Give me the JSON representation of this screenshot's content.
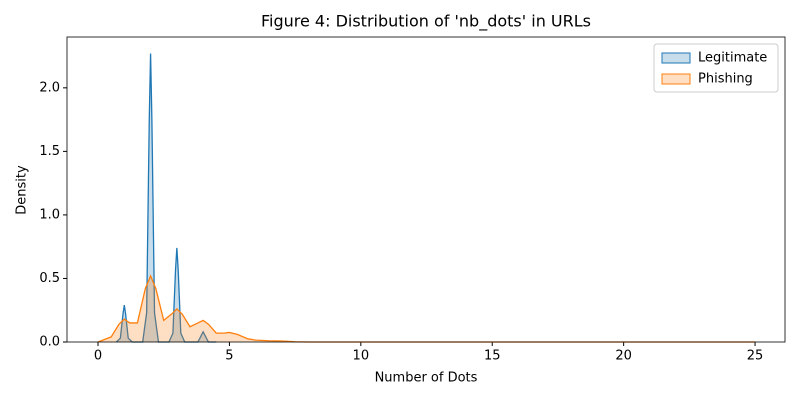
{
  "chart_data": {
    "type": "area",
    "title": "Figure 4: Distribution of 'nb_dots' in URLs",
    "x_label": "Number of Dots",
    "y_label": "Density",
    "xlim": [
      -1.18,
      26.14
    ],
    "ylim": [
      0,
      2.4
    ],
    "xticks": [
      0,
      5,
      10,
      15,
      20,
      25
    ],
    "yticks": [
      {
        "value": 0,
        "label": "0.0"
      },
      0.5,
      {
        "value": 1,
        "label": "1.0"
      },
      1.5,
      {
        "value": 2,
        "label": "2.0"
      }
    ],
    "legend": "upper right",
    "series": [
      {
        "name": "Legitimate",
        "color": "#1f77b4",
        "x": [
          0.7,
          0.85,
          0.95,
          1,
          1.05,
          1.15,
          1.3,
          1.7,
          1.85,
          1.95,
          2,
          2.05,
          2.15,
          2.3,
          2.7,
          2.85,
          2.95,
          3,
          3.05,
          3.15,
          3.3,
          3.8,
          3.9,
          4,
          4.1,
          4.2,
          4.5
        ],
        "values": [
          0,
          0.03,
          0.22,
          0.29,
          0.22,
          0.03,
          0,
          0,
          0.23,
          1.75,
          2.27,
          1.75,
          0.23,
          0,
          0,
          0.07,
          0.57,
          0.74,
          0.57,
          0.07,
          0,
          0,
          0.04,
          0.08,
          0.04,
          0,
          0
        ]
      },
      {
        "name": "Phishing",
        "color": "#ff7f0e",
        "x": [
          0,
          0.5,
          0.8,
          1,
          1.2,
          1.5,
          1.8,
          2,
          2.2,
          2.5,
          2.8,
          3,
          3.2,
          3.5,
          3.8,
          4,
          4.2,
          4.5,
          4.8,
          5,
          5.3,
          5.7,
          6,
          6.5,
          7,
          7.5,
          8,
          25
        ],
        "values": [
          0,
          0.04,
          0.14,
          0.18,
          0.15,
          0.15,
          0.42,
          0.52,
          0.42,
          0.17,
          0.22,
          0.26,
          0.22,
          0.12,
          0.15,
          0.17,
          0.14,
          0.07,
          0.07,
          0.075,
          0.06,
          0.025,
          0.015,
          0.01,
          0.008,
          0.002,
          0,
          0
        ]
      }
    ]
  }
}
